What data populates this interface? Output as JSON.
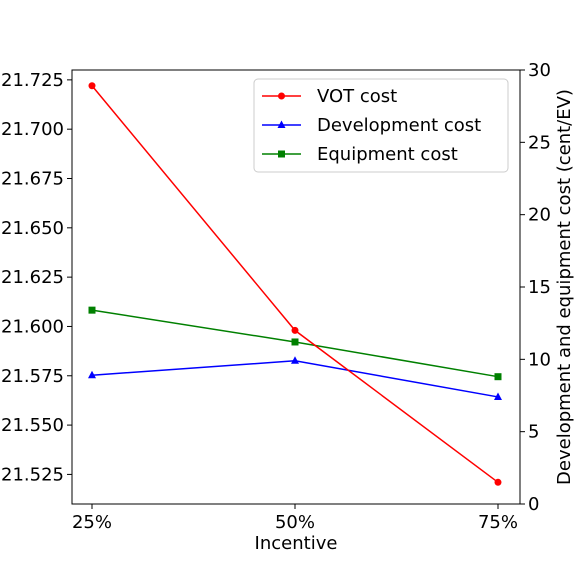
{
  "chart_data": {
    "type": "line",
    "title": "",
    "xlabel": "Incentive",
    "ylabel_right": "Development and equipment cost (cent/EV)",
    "ylabel_left": "",
    "categories": [
      "25%",
      "50%",
      "75%"
    ],
    "ylim_left": [
      21.51,
      21.73
    ],
    "yticks_left": [
      "21.525",
      "21.550",
      "21.575",
      "21.600",
      "21.625",
      "21.650",
      "21.675",
      "21.700",
      "21.725"
    ],
    "ylim_right": [
      0,
      30
    ],
    "yticks_right": [
      "0",
      "5",
      "10",
      "15",
      "20",
      "25",
      "30"
    ],
    "legend_position": "top-right",
    "grid": false,
    "series": [
      {
        "name": "VOT cost",
        "axis": "left",
        "marker": "circle",
        "color": "#ff0000",
        "values": [
          21.722,
          21.598,
          21.521
        ]
      },
      {
        "name": "Development cost",
        "axis": "right",
        "marker": "triangle",
        "color": "#0000ff",
        "values": [
          8.9,
          9.9,
          7.4
        ]
      },
      {
        "name": "Equipment cost",
        "axis": "right",
        "marker": "square",
        "color": "#008000",
        "values": [
          13.4,
          11.2,
          8.8
        ]
      }
    ]
  }
}
